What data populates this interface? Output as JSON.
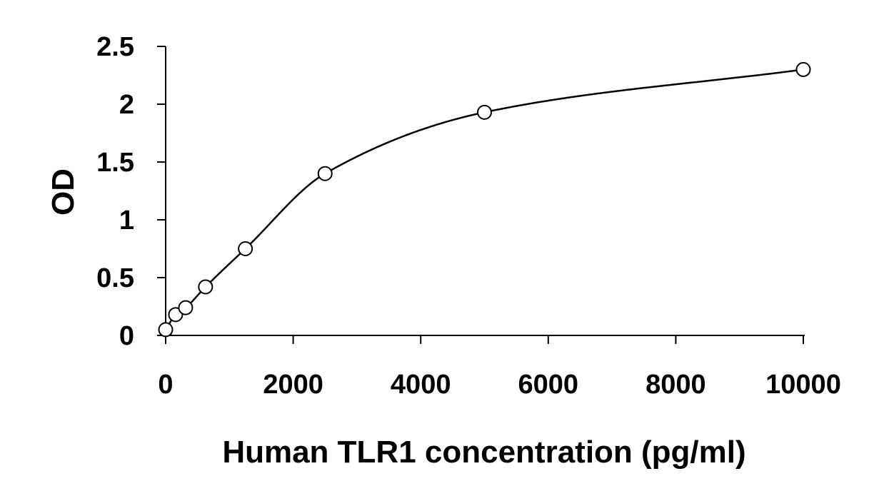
{
  "chart_data": {
    "type": "scatter",
    "title": "",
    "xlabel": "Human TLR1 concentration (pg/ml)",
    "ylabel": "OD",
    "xlim": [
      0,
      10000
    ],
    "ylim": [
      0,
      2.5
    ],
    "xticks": [
      0,
      2000,
      4000,
      6000,
      8000,
      10000
    ],
    "xtick_labels": [
      "0",
      "2000",
      "4000",
      "6000",
      "8000",
      "10000"
    ],
    "yticks": [
      0,
      0.5,
      1,
      1.5,
      2,
      2.5
    ],
    "ytick_labels": [
      "0",
      "0.5",
      "1",
      "1.5",
      "2",
      "2.5"
    ],
    "grid": false,
    "series": [
      {
        "points": [
          {
            "x": 0,
            "y": 0.05
          },
          {
            "x": 156,
            "y": 0.18
          },
          {
            "x": 313,
            "y": 0.24
          },
          {
            "x": 625,
            "y": 0.42
          },
          {
            "x": 1250,
            "y": 0.75
          },
          {
            "x": 2500,
            "y": 1.4
          },
          {
            "x": 5000,
            "y": 1.93
          },
          {
            "x": 10000,
            "y": 2.3
          }
        ],
        "marker": "open-circle",
        "fit_curve": true
      }
    ],
    "colors": {
      "line": "#000000",
      "marker": "#000000"
    }
  }
}
